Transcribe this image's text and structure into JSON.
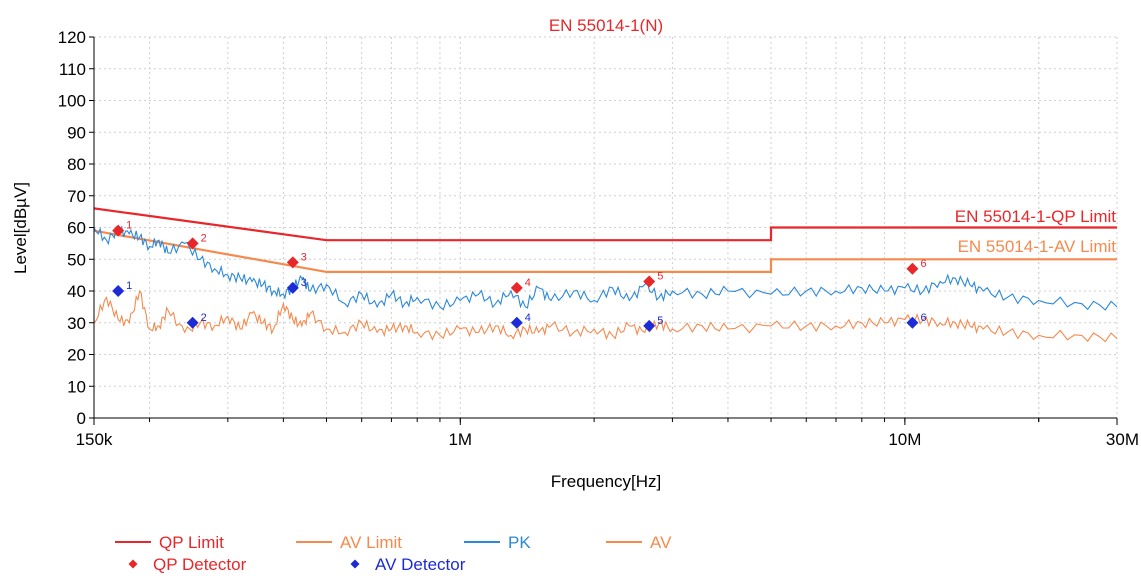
{
  "chart_data": {
    "type": "line",
    "title": "EN 55014-1(N)",
    "xlabel": "Frequency[Hz]",
    "ylabel": "Level[dBµV]",
    "x_scale": "log",
    "xlim": [
      150000,
      30000000
    ],
    "ylim": [
      0,
      120
    ],
    "yticks": [
      0,
      10,
      20,
      30,
      40,
      50,
      60,
      70,
      80,
      90,
      100,
      110,
      120
    ],
    "xtick_labels": [
      {
        "value": 150000,
        "label": "150k"
      },
      {
        "value": 1000000,
        "label": "1M"
      },
      {
        "value": 10000000,
        "label": "10M"
      },
      {
        "value": 30000000,
        "label": "30M"
      }
    ],
    "grid": true,
    "limit_labels": {
      "qp": "EN 55014-1-QP Limit",
      "av": "EN 55014-1-AV Limit"
    },
    "series": [
      {
        "name": "QP Limit",
        "color": "#e8272a",
        "x": [
          150000,
          500000,
          500000,
          5000000,
          5000000,
          30000000
        ],
        "y": [
          66,
          56,
          56,
          56,
          60,
          60
        ]
      },
      {
        "name": "AV Limit",
        "color": "#f58a4e",
        "x": [
          150000,
          500000,
          500000,
          5000000,
          5000000,
          30000000
        ],
        "y": [
          59,
          46,
          46,
          46,
          50,
          50
        ]
      },
      {
        "name": "PK",
        "color": "#2c88d9",
        "x": [
          150000,
          160000,
          170000,
          180000,
          190000,
          200000,
          210000,
          220000,
          240000,
          260000,
          280000,
          300000,
          320000,
          340000,
          360000,
          380000,
          400000,
          420000,
          440000,
          460000,
          500000,
          550000,
          600000,
          650000,
          700000,
          750000,
          800000,
          900000,
          1000000,
          1100000,
          1200000,
          1300000,
          1400000,
          1500000,
          1600000,
          1800000,
          2000000,
          2200000,
          2400000,
          2600000,
          2800000,
          3000000,
          3500000,
          4000000,
          5000000,
          6000000,
          7000000,
          8000000,
          9000000,
          10000000,
          11000000,
          12000000,
          13000000,
          14000000,
          15000000,
          17000000,
          20000000,
          25000000,
          30000000
        ],
        "y": [
          60,
          56,
          59,
          58,
          57,
          54,
          56,
          52,
          55,
          50,
          47,
          45,
          44,
          43,
          42,
          40,
          39,
          41,
          44,
          40,
          42,
          36,
          39,
          35,
          39,
          36,
          38,
          35,
          37,
          39,
          36,
          40,
          35,
          41,
          37,
          40,
          37,
          41,
          37,
          42,
          38,
          40,
          39,
          40,
          39,
          40,
          40,
          41,
          40,
          41,
          40,
          43,
          44,
          42,
          40,
          38,
          37,
          36,
          35
        ]
      },
      {
        "name": "AV",
        "color": "#f58a4e",
        "x": [
          150000,
          160000,
          170000,
          180000,
          190000,
          200000,
          210000,
          220000,
          240000,
          260000,
          280000,
          300000,
          320000,
          340000,
          360000,
          380000,
          400000,
          420000,
          440000,
          460000,
          500000,
          550000,
          600000,
          650000,
          700000,
          750000,
          800000,
          900000,
          1000000,
          1100000,
          1200000,
          1300000,
          1400000,
          1500000,
          1600000,
          1800000,
          2000000,
          2200000,
          2400000,
          2600000,
          2800000,
          3000000,
          3500000,
          4000000,
          5000000,
          6000000,
          7000000,
          8000000,
          9000000,
          10000000,
          11000000,
          12000000,
          13000000,
          14000000,
          15000000,
          17000000,
          20000000,
          25000000,
          30000000
        ],
        "y": [
          30,
          38,
          31,
          30,
          40,
          28,
          29,
          34,
          27,
          30,
          29,
          32,
          28,
          33,
          30,
          28,
          36,
          31,
          29,
          33,
          28,
          27,
          30,
          27,
          28,
          29,
          27,
          26,
          28,
          27,
          29,
          26,
          28,
          27,
          29,
          27,
          28,
          26,
          29,
          27,
          30,
          28,
          29,
          28,
          29,
          29,
          29,
          30,
          30,
          31,
          31,
          30,
          30,
          29,
          28,
          27,
          26,
          26,
          25
        ]
      }
    ],
    "qp_detector": [
      {
        "label": "1",
        "x": 170000,
        "y": 59
      },
      {
        "label": "2",
        "x": 250000,
        "y": 55
      },
      {
        "label": "3",
        "x": 420000,
        "y": 49
      },
      {
        "label": "4",
        "x": 1340000,
        "y": 41
      },
      {
        "label": "5",
        "x": 2660000,
        "y": 43
      },
      {
        "label": "6",
        "x": 10400000,
        "y": 47
      }
    ],
    "av_detector": [
      {
        "label": "1",
        "x": 170000,
        "y": 40
      },
      {
        "label": "2",
        "x": 250000,
        "y": 30
      },
      {
        "label": "3",
        "x": 420000,
        "y": 41
      },
      {
        "label": "4",
        "x": 1340000,
        "y": 30
      },
      {
        "label": "5",
        "x": 2660000,
        "y": 29
      },
      {
        "label": "6",
        "x": 10400000,
        "y": 30
      }
    ],
    "legend": {
      "placement": "bottom-left",
      "items": [
        {
          "label": "QP Limit",
          "kind": "line",
          "color": "#e8272a"
        },
        {
          "label": "AV Limit",
          "kind": "line",
          "color": "#f58a4e"
        },
        {
          "label": "PK",
          "kind": "line",
          "color": "#2c88d9"
        },
        {
          "label": "AV",
          "kind": "line",
          "color": "#f58a4e"
        },
        {
          "label": "QP Detector",
          "kind": "diamond",
          "color": "#e8272a"
        },
        {
          "label": "AV Detector",
          "kind": "diamond",
          "color": "#1c2bd6"
        }
      ]
    },
    "colors": {
      "title": "#e8272a",
      "qp_label": "#e8272a",
      "av_label": "#f58a4e",
      "qp_marker": "#e8272a",
      "av_marker": "#1c2bd6",
      "legend_text_1": "#e8272a",
      "legend_text_2": "#f58a4e",
      "legend_text_3": "#2c88d9",
      "legend_text_4": "#f58a4e",
      "legend_text_5": "#e8272a",
      "legend_text_6": "#1c2bd6"
    }
  }
}
